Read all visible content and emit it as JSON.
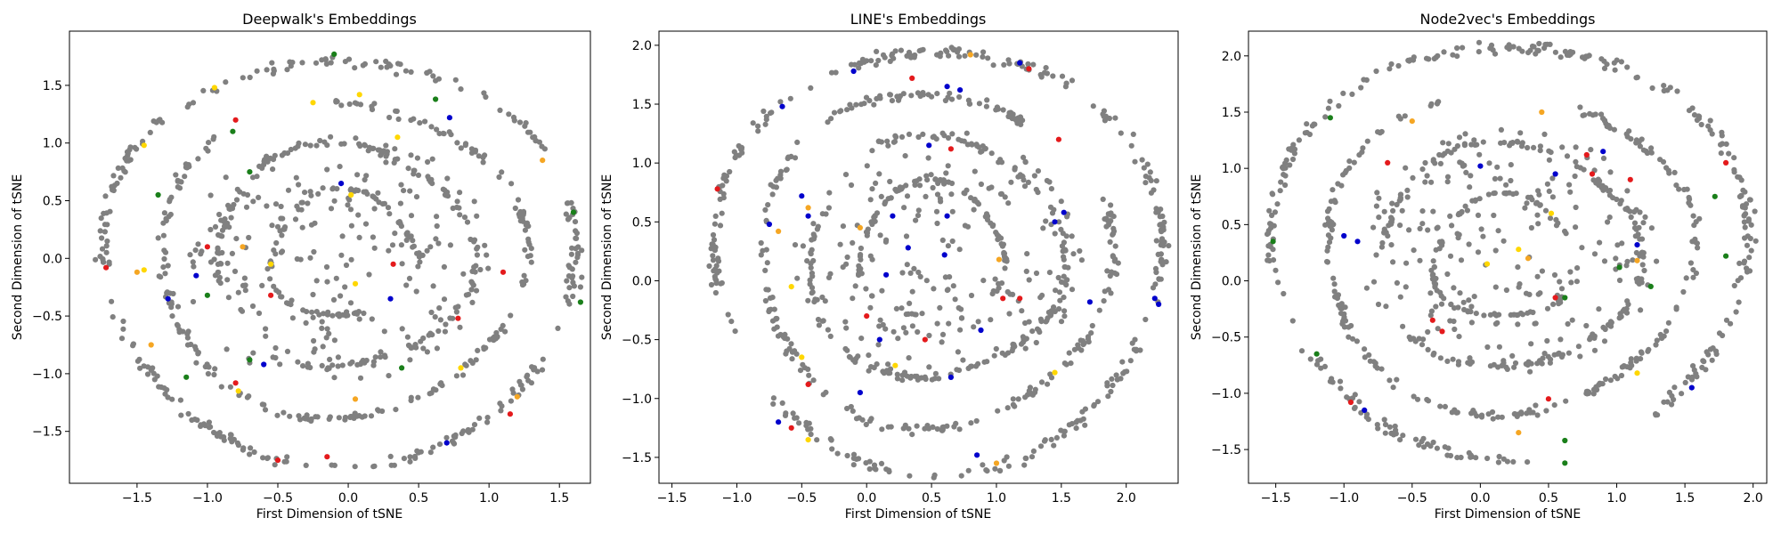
{
  "chart_data": [
    {
      "type": "scatter",
      "title": "Deepwalk's Embeddings",
      "xlabel": "First Dimension of tSNE",
      "ylabel": "Second Dimension of tSNE",
      "xlim": [
        -1.98,
        1.72
      ],
      "ylim": [
        -1.95,
        1.97
      ],
      "xticks": [
        -1.5,
        -1.0,
        -0.5,
        0.0,
        0.5,
        1.0,
        1.5
      ],
      "xtick_labels": [
        "−1.5",
        "−1.0",
        "−0.5",
        "0.0",
        "0.5",
        "1.0",
        "1.5"
      ],
      "yticks": [
        -1.5,
        -1.0,
        -0.5,
        0.0,
        0.5,
        1.0,
        1.5
      ],
      "ytick_labels": [
        "−1.5",
        "−1.0",
        "−0.5",
        "0.0",
        "0.5",
        "1.0",
        "1.5"
      ],
      "grid": false,
      "colors": {
        "background": "#808080",
        "red": "#e41a1c",
        "blue": "#0000cc",
        "green": "#1a7f1a",
        "yellow": "#ffd700",
        "orange": "#f5a623"
      },
      "rings": [
        {
          "cx": -0.06,
          "cy": -0.02,
          "r": 1.68,
          "gap": 0.25,
          "rot": 0.3
        },
        {
          "cx": -0.05,
          "cy": 0.0,
          "r": 1.3,
          "gap": 0.7,
          "rot": 1.6
        },
        {
          "cx": -0.04,
          "cy": 0.02,
          "r": 0.92,
          "gap": 0.9,
          "rot": 3.4
        },
        {
          "cx": -0.03,
          "cy": 0.02,
          "r": 0.52,
          "gap": 1.1,
          "rot": 5.0
        }
      ],
      "highlighted_points": [
        {
          "x": -0.1,
          "y": 1.77,
          "c": "green"
        },
        {
          "x": -0.95,
          "y": 1.48,
          "c": "yellow"
        },
        {
          "x": -0.25,
          "y": 1.35,
          "c": "yellow"
        },
        {
          "x": 0.08,
          "y": 1.42,
          "c": "yellow"
        },
        {
          "x": 0.62,
          "y": 1.38,
          "c": "green"
        },
        {
          "x": 0.72,
          "y": 1.22,
          "c": "blue"
        },
        {
          "x": -0.8,
          "y": 1.2,
          "c": "red"
        },
        {
          "x": -0.82,
          "y": 1.1,
          "c": "green"
        },
        {
          "x": 0.35,
          "y": 1.05,
          "c": "yellow"
        },
        {
          "x": -1.45,
          "y": 0.98,
          "c": "yellow"
        },
        {
          "x": 1.38,
          "y": 0.85,
          "c": "orange"
        },
        {
          "x": -0.7,
          "y": 0.75,
          "c": "green"
        },
        {
          "x": -0.05,
          "y": 0.65,
          "c": "blue"
        },
        {
          "x": 0.02,
          "y": 0.55,
          "c": "yellow"
        },
        {
          "x": -1.35,
          "y": 0.55,
          "c": "green"
        },
        {
          "x": 1.6,
          "y": 0.4,
          "c": "green"
        },
        {
          "x": -1.0,
          "y": 0.1,
          "c": "red"
        },
        {
          "x": -0.75,
          "y": 0.1,
          "c": "orange"
        },
        {
          "x": -1.72,
          "y": -0.08,
          "c": "red"
        },
        {
          "x": -1.5,
          "y": -0.12,
          "c": "orange"
        },
        {
          "x": -1.45,
          "y": -0.1,
          "c": "yellow"
        },
        {
          "x": -1.08,
          "y": -0.15,
          "c": "blue"
        },
        {
          "x": -0.55,
          "y": -0.05,
          "c": "yellow"
        },
        {
          "x": 0.05,
          "y": -0.22,
          "c": "yellow"
        },
        {
          "x": 0.32,
          "y": -0.05,
          "c": "red"
        },
        {
          "x": 1.1,
          "y": -0.12,
          "c": "red"
        },
        {
          "x": -1.28,
          "y": -0.35,
          "c": "blue"
        },
        {
          "x": -1.0,
          "y": -0.32,
          "c": "green"
        },
        {
          "x": -0.55,
          "y": -0.32,
          "c": "red"
        },
        {
          "x": 0.3,
          "y": -0.35,
          "c": "blue"
        },
        {
          "x": 0.78,
          "y": -0.52,
          "c": "red"
        },
        {
          "x": 1.65,
          "y": -0.38,
          "c": "green"
        },
        {
          "x": -1.4,
          "y": -0.75,
          "c": "orange"
        },
        {
          "x": -1.15,
          "y": -1.03,
          "c": "green"
        },
        {
          "x": -0.7,
          "y": -0.88,
          "c": "green"
        },
        {
          "x": -0.6,
          "y": -0.92,
          "c": "blue"
        },
        {
          "x": -0.8,
          "y": -1.08,
          "c": "red"
        },
        {
          "x": -0.78,
          "y": -1.15,
          "c": "yellow"
        },
        {
          "x": 0.38,
          "y": -0.95,
          "c": "green"
        },
        {
          "x": 0.8,
          "y": -0.95,
          "c": "yellow"
        },
        {
          "x": 0.05,
          "y": -1.22,
          "c": "orange"
        },
        {
          "x": 1.2,
          "y": -1.2,
          "c": "orange"
        },
        {
          "x": -0.5,
          "y": -1.75,
          "c": "red"
        },
        {
          "x": -0.15,
          "y": -1.72,
          "c": "red"
        },
        {
          "x": 0.7,
          "y": -1.6,
          "c": "blue"
        },
        {
          "x": 1.15,
          "y": -1.35,
          "c": "red"
        }
      ]
    },
    {
      "type": "scatter",
      "title": "LINE's Embeddings",
      "xlabel": "First Dimension of tSNE",
      "ylabel": "Second Dimension of tSNE",
      "xlim": [
        -1.6,
        2.4
      ],
      "ylim": [
        -1.72,
        2.12
      ],
      "xticks": [
        -1.5,
        -1.0,
        -0.5,
        0.0,
        0.5,
        1.0,
        1.5,
        2.0
      ],
      "xtick_labels": [
        "−1.5",
        "−1.0",
        "−0.5",
        "0.0",
        "0.5",
        "1.0",
        "1.5",
        "2.0"
      ],
      "yticks": [
        -1.5,
        -1.0,
        -0.5,
        0.0,
        0.5,
        1.0,
        1.5,
        2.0
      ],
      "ytick_labels": [
        "−1.5",
        "−1.0",
        "−0.5",
        "0.0",
        "0.5",
        "1.0",
        "1.5",
        "2.0"
      ],
      "grid": false,
      "colors": {
        "background": "#808080",
        "red": "#e41a1c",
        "blue": "#0000cc",
        "green": "#1a7f1a",
        "yellow": "#ffd700",
        "orange": "#f5a623"
      },
      "rings": [
        {
          "cx": 0.55,
          "cy": 0.18,
          "r": 1.72,
          "gap": 0.35,
          "rot": 3.5
        },
        {
          "cx": 0.52,
          "cy": 0.18,
          "r": 1.35,
          "gap": 0.6,
          "rot": 0.4
        },
        {
          "cx": 0.52,
          "cy": 0.2,
          "r": 0.98,
          "gap": 0.8,
          "rot": 2.0
        },
        {
          "cx": 0.5,
          "cy": 0.25,
          "r": 0.55,
          "gap": 1.0,
          "rot": 4.6
        }
      ],
      "highlighted_points": [
        {
          "x": 1.18,
          "y": 1.85,
          "c": "blue"
        },
        {
          "x": 1.25,
          "y": 1.8,
          "c": "red"
        },
        {
          "x": 0.62,
          "y": 1.65,
          "c": "blue"
        },
        {
          "x": 0.72,
          "y": 1.62,
          "c": "blue"
        },
        {
          "x": 0.35,
          "y": 1.72,
          "c": "red"
        },
        {
          "x": 0.8,
          "y": 1.92,
          "c": "orange"
        },
        {
          "x": -0.65,
          "y": 1.48,
          "c": "blue"
        },
        {
          "x": -0.1,
          "y": 1.78,
          "c": "blue"
        },
        {
          "x": 0.48,
          "y": 1.15,
          "c": "blue"
        },
        {
          "x": 0.65,
          "y": 1.12,
          "c": "red"
        },
        {
          "x": 1.48,
          "y": 1.2,
          "c": "red"
        },
        {
          "x": -1.15,
          "y": 0.78,
          "c": "red"
        },
        {
          "x": -0.5,
          "y": 0.72,
          "c": "blue"
        },
        {
          "x": -0.45,
          "y": 0.62,
          "c": "orange"
        },
        {
          "x": -0.75,
          "y": 0.48,
          "c": "blue"
        },
        {
          "x": -0.68,
          "y": 0.42,
          "c": "orange"
        },
        {
          "x": -0.45,
          "y": 0.55,
          "c": "blue"
        },
        {
          "x": -0.05,
          "y": 0.45,
          "c": "orange"
        },
        {
          "x": 0.2,
          "y": 0.55,
          "c": "blue"
        },
        {
          "x": 0.62,
          "y": 0.55,
          "c": "blue"
        },
        {
          "x": 1.52,
          "y": 0.58,
          "c": "blue"
        },
        {
          "x": 1.45,
          "y": 0.5,
          "c": "blue"
        },
        {
          "x": 0.32,
          "y": 0.28,
          "c": "blue"
        },
        {
          "x": 0.6,
          "y": 0.22,
          "c": "blue"
        },
        {
          "x": 1.02,
          "y": 0.18,
          "c": "orange"
        },
        {
          "x": 0.15,
          "y": 0.05,
          "c": "blue"
        },
        {
          "x": -0.58,
          "y": -0.05,
          "c": "yellow"
        },
        {
          "x": 1.05,
          "y": -0.15,
          "c": "red"
        },
        {
          "x": 1.18,
          "y": -0.15,
          "c": "red"
        },
        {
          "x": 1.72,
          "y": -0.18,
          "c": "blue"
        },
        {
          "x": 2.25,
          "y": -0.2,
          "c": "blue"
        },
        {
          "x": 2.22,
          "y": -0.15,
          "c": "blue"
        },
        {
          "x": 0.0,
          "y": -0.3,
          "c": "red"
        },
        {
          "x": 0.1,
          "y": -0.5,
          "c": "blue"
        },
        {
          "x": 0.45,
          "y": -0.5,
          "c": "red"
        },
        {
          "x": 0.88,
          "y": -0.42,
          "c": "blue"
        },
        {
          "x": -0.5,
          "y": -0.65,
          "c": "yellow"
        },
        {
          "x": 0.22,
          "y": -0.72,
          "c": "yellow"
        },
        {
          "x": -0.45,
          "y": -0.88,
          "c": "red"
        },
        {
          "x": -0.05,
          "y": -0.95,
          "c": "blue"
        },
        {
          "x": 0.65,
          "y": -0.82,
          "c": "blue"
        },
        {
          "x": 1.45,
          "y": -0.78,
          "c": "yellow"
        },
        {
          "x": -0.68,
          "y": -1.2,
          "c": "blue"
        },
        {
          "x": -0.58,
          "y": -1.25,
          "c": "red"
        },
        {
          "x": -0.45,
          "y": -1.35,
          "c": "yellow"
        },
        {
          "x": 0.85,
          "y": -1.48,
          "c": "blue"
        },
        {
          "x": 1.0,
          "y": -1.55,
          "c": "orange"
        }
      ]
    },
    {
      "type": "scatter",
      "title": "Node2vec's Embeddings",
      "xlabel": "First Dimension of tSNE",
      "ylabel": "Second Dimension of tSNE",
      "xlim": [
        -1.7,
        2.1
      ],
      "ylim": [
        -1.8,
        2.22
      ],
      "xticks": [
        -1.5,
        -1.0,
        -0.5,
        0.0,
        0.5,
        1.0,
        1.5,
        2.0
      ],
      "xtick_labels": [
        "−1.5",
        "−1.0",
        "−0.5",
        "0.0",
        "0.5",
        "1.0",
        "1.5",
        "2.0"
      ],
      "yticks": [
        -1.5,
        -1.0,
        -0.5,
        0.0,
        0.5,
        1.0,
        1.5,
        2.0
      ],
      "ytick_labels": [
        "−1.5",
        "−1.0",
        "−0.5",
        "0.0",
        "0.5",
        "1.0",
        "1.5",
        "2.0"
      ],
      "grid": false,
      "colors": {
        "background": "#808080",
        "red": "#e41a1c",
        "blue": "#0000cc",
        "green": "#1a7f1a",
        "yellow": "#ffd700",
        "orange": "#f5a623"
      },
      "rings": [
        {
          "cx": 0.22,
          "cy": 0.28,
          "r": 1.75,
          "gap": 0.55,
          "rot": 4.8
        },
        {
          "cx": 0.2,
          "cy": 0.25,
          "r": 1.35,
          "gap": 0.7,
          "rot": 1.2
        },
        {
          "cx": 0.2,
          "cy": 0.22,
          "r": 0.95,
          "gap": 0.85,
          "rot": 3.0
        },
        {
          "cx": 0.18,
          "cy": 0.2,
          "r": 0.52,
          "gap": 1.05,
          "rot": 5.6
        }
      ],
      "highlighted_points": [
        {
          "x": -1.1,
          "y": 1.45,
          "c": "green"
        },
        {
          "x": -0.5,
          "y": 1.42,
          "c": "orange"
        },
        {
          "x": 0.45,
          "y": 1.5,
          "c": "orange"
        },
        {
          "x": 0.9,
          "y": 1.15,
          "c": "blue"
        },
        {
          "x": 0.78,
          "y": 1.12,
          "c": "red"
        },
        {
          "x": 1.8,
          "y": 1.05,
          "c": "red"
        },
        {
          "x": 0.0,
          "y": 1.02,
          "c": "blue"
        },
        {
          "x": -0.68,
          "y": 1.05,
          "c": "red"
        },
        {
          "x": 0.55,
          "y": 0.95,
          "c": "blue"
        },
        {
          "x": 0.82,
          "y": 0.95,
          "c": "red"
        },
        {
          "x": 1.1,
          "y": 0.9,
          "c": "red"
        },
        {
          "x": 1.72,
          "y": 0.75,
          "c": "green"
        },
        {
          "x": 0.52,
          "y": 0.6,
          "c": "yellow"
        },
        {
          "x": -1.52,
          "y": 0.35,
          "c": "green"
        },
        {
          "x": -1.0,
          "y": 0.4,
          "c": "blue"
        },
        {
          "x": -0.9,
          "y": 0.35,
          "c": "blue"
        },
        {
          "x": 1.15,
          "y": 0.32,
          "c": "blue"
        },
        {
          "x": 1.8,
          "y": 0.22,
          "c": "green"
        },
        {
          "x": 0.28,
          "y": 0.28,
          "c": "yellow"
        },
        {
          "x": 0.05,
          "y": 0.15,
          "c": "yellow"
        },
        {
          "x": 0.35,
          "y": 0.2,
          "c": "orange"
        },
        {
          "x": 1.15,
          "y": 0.18,
          "c": "orange"
        },
        {
          "x": 1.02,
          "y": 0.12,
          "c": "green"
        },
        {
          "x": 1.25,
          "y": -0.05,
          "c": "green"
        },
        {
          "x": -0.35,
          "y": -0.35,
          "c": "red"
        },
        {
          "x": -0.28,
          "y": -0.45,
          "c": "red"
        },
        {
          "x": 0.55,
          "y": -0.15,
          "c": "red"
        },
        {
          "x": 0.62,
          "y": -0.15,
          "c": "green"
        },
        {
          "x": 1.15,
          "y": -0.82,
          "c": "yellow"
        },
        {
          "x": 1.55,
          "y": -0.95,
          "c": "blue"
        },
        {
          "x": -1.2,
          "y": -0.65,
          "c": "green"
        },
        {
          "x": -0.95,
          "y": -1.08,
          "c": "red"
        },
        {
          "x": -0.85,
          "y": -1.15,
          "c": "blue"
        },
        {
          "x": 0.5,
          "y": -1.05,
          "c": "red"
        },
        {
          "x": 0.28,
          "y": -1.35,
          "c": "orange"
        },
        {
          "x": 0.62,
          "y": -1.42,
          "c": "green"
        },
        {
          "x": 0.62,
          "y": -1.62,
          "c": "green"
        }
      ]
    }
  ]
}
